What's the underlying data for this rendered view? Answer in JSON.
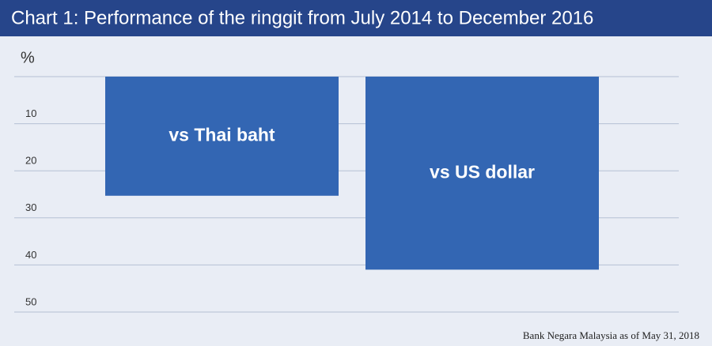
{
  "chart_data": {
    "type": "bar",
    "title": "Chart 1: Performance of the ringgit from July 2014 to December 2016",
    "y_label": "%",
    "categories": [
      "vs Thai baht",
      "vs US dollar"
    ],
    "values": [
      25.3,
      41.0
    ],
    "color": "#3366b3",
    "ylim": [
      0,
      50
    ],
    "yticks": [
      10,
      20,
      30,
      40,
      50
    ],
    "inverted": true,
    "grid": true,
    "source": "Bank Negara Malaysia as of May 31, 2018"
  }
}
